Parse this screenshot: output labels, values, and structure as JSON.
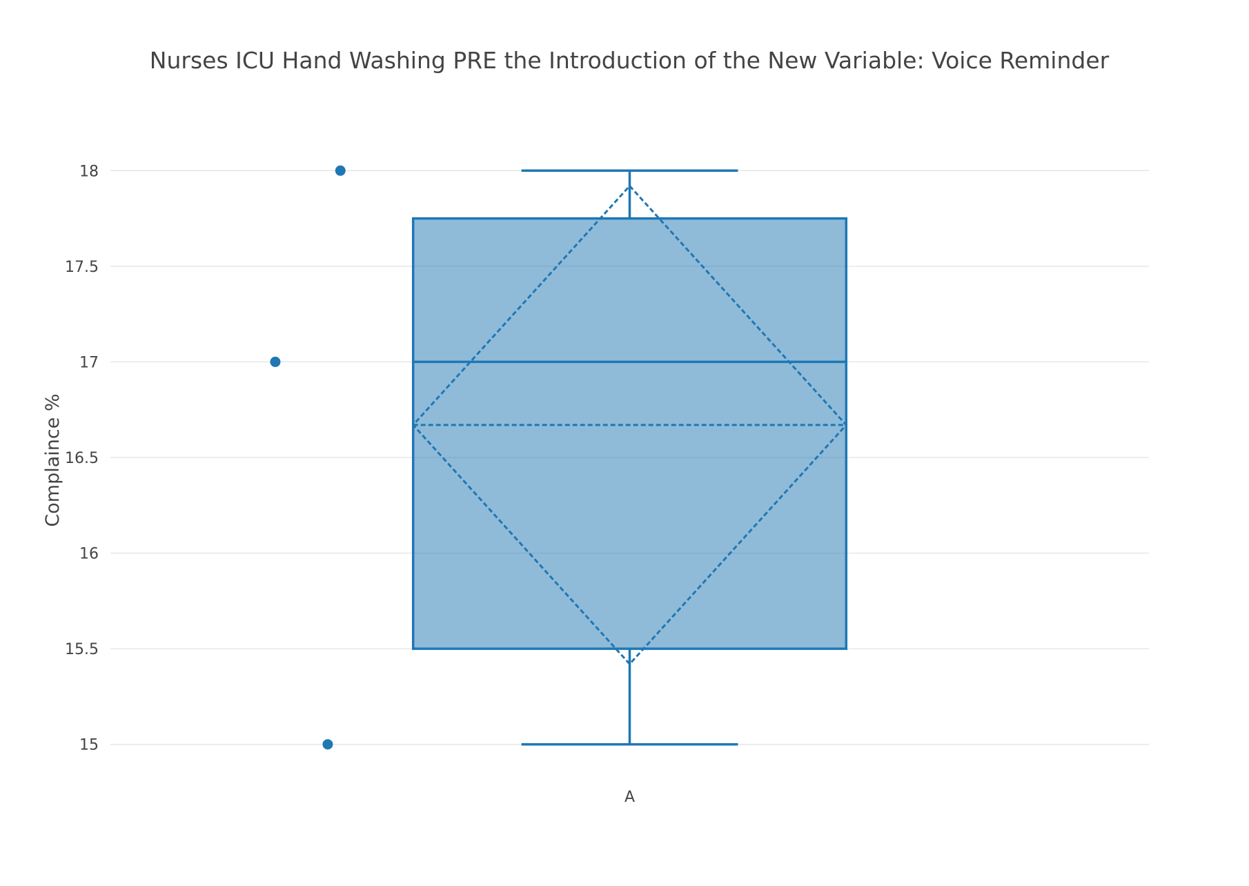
{
  "chart_data": {
    "type": "box",
    "title": "Nurses ICU Hand Washing PRE the Introduction of the New Variable: Voice Reminder",
    "ylabel": "Complaince %",
    "xlabel": "",
    "ylim": [
      14.75,
      18.25
    ],
    "yticks": [
      15,
      15.5,
      16,
      16.5,
      17,
      17.5,
      18
    ],
    "ytick_labels": [
      "15",
      "15.5",
      "16",
      "16.5",
      "17",
      "17.5",
      "18"
    ],
    "grid": true,
    "categories": [
      "A"
    ],
    "series": [
      {
        "category": "A",
        "points": [
          18,
          17,
          15
        ],
        "min": 15,
        "q1": 15.5,
        "median": 17,
        "q3": 17.75,
        "max": 18,
        "mean": 16.67,
        "sd": 1.25
      }
    ],
    "colors": {
      "line": "#1f77b4",
      "fill": "#1f77b4",
      "fill_opacity": 0.5,
      "grid": "#e6e6e6",
      "text": "#444444"
    }
  }
}
